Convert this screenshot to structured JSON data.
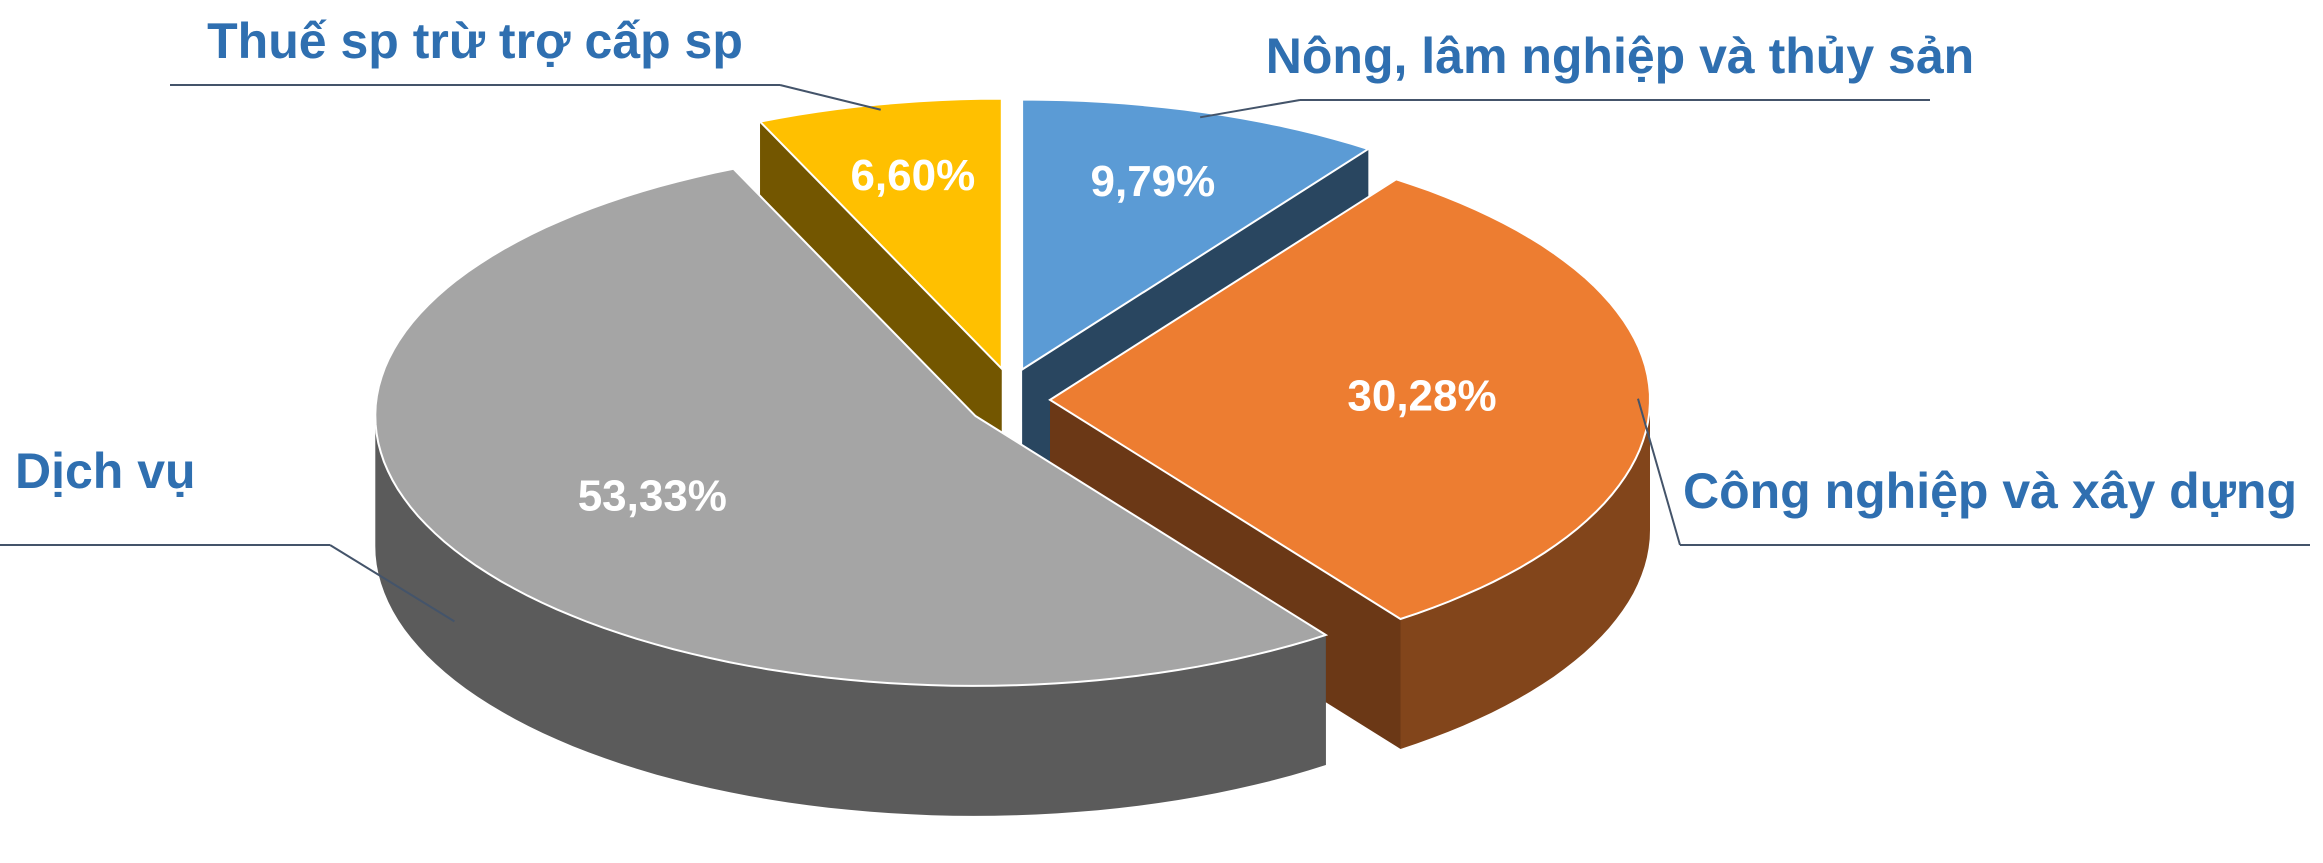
{
  "chart_data": {
    "type": "pie",
    "categories": [
      "Nông, lâm nghiệp và thủy sản",
      "Công nghiệp và xây dựng",
      "Dịch vụ",
      "Thuế sp trừ trợ cấp sp"
    ],
    "values": [
      9.79,
      30.28,
      53.33,
      6.6
    ],
    "value_labels": [
      "9,79%",
      "30,28%",
      "53,33%",
      "6,60%"
    ],
    "colors": [
      "#5b9bd5",
      "#ed7d31",
      "#a5a5a5",
      "#ffc000"
    ]
  }
}
